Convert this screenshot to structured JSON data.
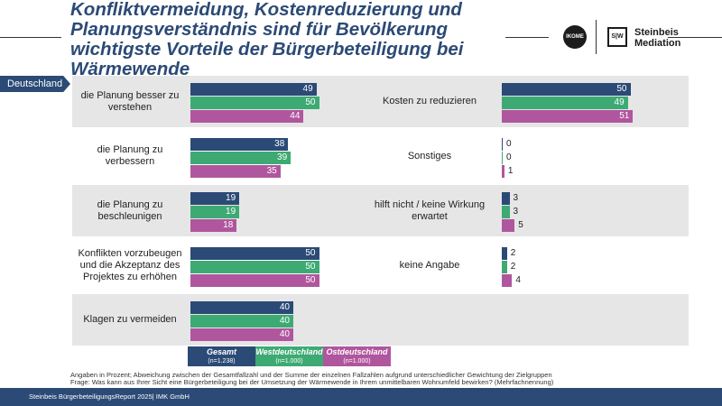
{
  "title": "Konfliktvermeidung, Kostenreduzierung und Planungsverständnis sind für Bevölkerung wichtigste Vorteile der Bürgerbeteiligung bei Wärmewende",
  "logos": {
    "ikome": "IKOME",
    "steinbeis_line1": "Steinbeis",
    "steinbeis_line2": "Mediation",
    "steinbeis_mark": "S|W"
  },
  "country_tab": "Deutschland",
  "colors": {
    "gesamt": "#2b4a76",
    "west": "#3daa73",
    "ost": "#b0569e",
    "band": "#e6e6e6"
  },
  "legend": [
    {
      "name": "Gesamt",
      "n": "(n=1.238)"
    },
    {
      "name": "Westdeutschland",
      "n": "(n=1.000)"
    },
    {
      "name": "Ostdeutschland",
      "n": "(n=1.000)"
    }
  ],
  "footnotes": [
    "Angaben in Prozent; Abweichung zwischen der Gesamtfallzahl und der Summe der einzelnen Fallzahlen aufgrund unterschiedlicher Gewichtung der Zielgruppen",
    "Frage: Was kann aus Ihrer Sicht eine Bürgerbeteiligung bei der Umsetzung der Wärmewende in Ihrem unmittelbaren Wohnumfeld bewirken? (Mehrfachnennung)"
  ],
  "footer": "Steinbeis BürgerbeteiligungsReport 2025| IMK GmbH",
  "chart_data": {
    "type": "bar",
    "orientation": "horizontal",
    "unit": "%",
    "series_names": [
      "Gesamt",
      "Westdeutschland",
      "Ostdeutschland"
    ],
    "left_column": [
      {
        "label": "die Planung besser zu verstehen",
        "values": [
          49,
          50,
          44
        ]
      },
      {
        "label": "die Planung zu verbessern",
        "values": [
          38,
          39,
          35
        ]
      },
      {
        "label": "die Planung zu beschleunigen",
        "values": [
          19,
          19,
          18
        ]
      },
      {
        "label": "Konflikten vorzubeugen und die Akzeptanz des Projektes zu erhöhen",
        "values": [
          50,
          50,
          50
        ]
      },
      {
        "label": "Klagen zu vermeiden",
        "values": [
          40,
          40,
          40
        ]
      }
    ],
    "right_column": [
      {
        "label": "Kosten zu reduzieren",
        "values": [
          50,
          49,
          51
        ]
      },
      {
        "label": "Sonstiges",
        "values": [
          0,
          0,
          1
        ]
      },
      {
        "label": "hilft nicht / keine Wirkung erwartet",
        "values": [
          3,
          3,
          5
        ]
      },
      {
        "label": "keine Angabe",
        "values": [
          2,
          2,
          4
        ]
      }
    ]
  }
}
